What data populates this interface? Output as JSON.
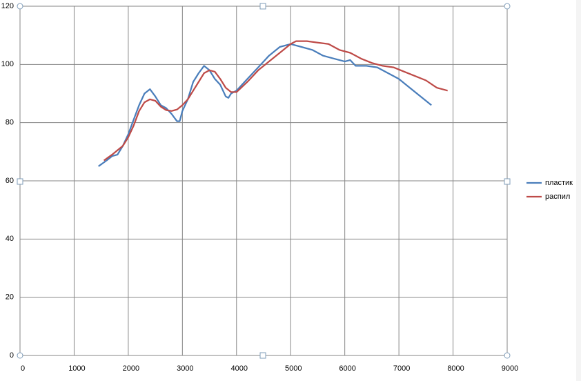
{
  "chart_data": {
    "type": "line",
    "xlim": [
      0,
      9000
    ],
    "xticks": [
      0,
      1000,
      2000,
      3000,
      4000,
      5000,
      6000,
      7000,
      8000,
      9000
    ],
    "ylim": [
      0,
      120
    ],
    "yticks": [
      0,
      20,
      40,
      60,
      80,
      100,
      120
    ],
    "grid": true,
    "legend": "right",
    "series": [
      {
        "name": "пластик",
        "color": "#4a7ebb",
        "x": [
          1450,
          1600,
          1700,
          1800,
          1900,
          2000,
          2100,
          2200,
          2300,
          2400,
          2500,
          2600,
          2700,
          2800,
          2900,
          2950,
          3000,
          3100,
          3200,
          3300,
          3400,
          3500,
          3600,
          3700,
          3800,
          3850,
          3900,
          4000,
          4200,
          4400,
          4600,
          4800,
          5000,
          5200,
          5400,
          5600,
          5800,
          6000,
          6100,
          6200,
          6400,
          6600,
          6800,
          7000,
          7200,
          7400,
          7600
        ],
        "values": [
          65,
          67,
          68.5,
          69,
          72,
          76,
          81,
          86,
          90,
          91.5,
          89,
          86,
          85,
          83,
          80.5,
          80.5,
          84,
          88,
          94,
          97,
          99.5,
          98,
          95,
          93,
          89,
          88.5,
          90,
          91,
          95,
          99,
          103,
          106,
          107,
          106,
          105,
          103,
          102,
          101,
          101.5,
          99.5,
          99.5,
          99,
          97,
          95,
          92,
          89,
          86
        ]
      },
      {
        "name": "распил",
        "color": "#be4b48",
        "x": [
          1550,
          1700,
          1900,
          2000,
          2100,
          2200,
          2300,
          2400,
          2500,
          2600,
          2700,
          2800,
          2900,
          3000,
          3100,
          3200,
          3300,
          3400,
          3500,
          3600,
          3700,
          3800,
          3900,
          4000,
          4200,
          4400,
          4600,
          4800,
          5000,
          5100,
          5300,
          5500,
          5700,
          5900,
          6100,
          6300,
          6500,
          6700,
          6900,
          7100,
          7300,
          7500,
          7700,
          7900
        ],
        "values": [
          67,
          69,
          72,
          75,
          79,
          84,
          87,
          88,
          87.5,
          85.5,
          84.3,
          84,
          84.5,
          86,
          88,
          91,
          94,
          97,
          98,
          97.5,
          95,
          92,
          90.5,
          90.5,
          94,
          98,
          101,
          104,
          107,
          108,
          108,
          107.5,
          107,
          105,
          104,
          102,
          100.5,
          99.5,
          99,
          97.5,
          96,
          94.5,
          92,
          91
        ]
      }
    ]
  }
}
